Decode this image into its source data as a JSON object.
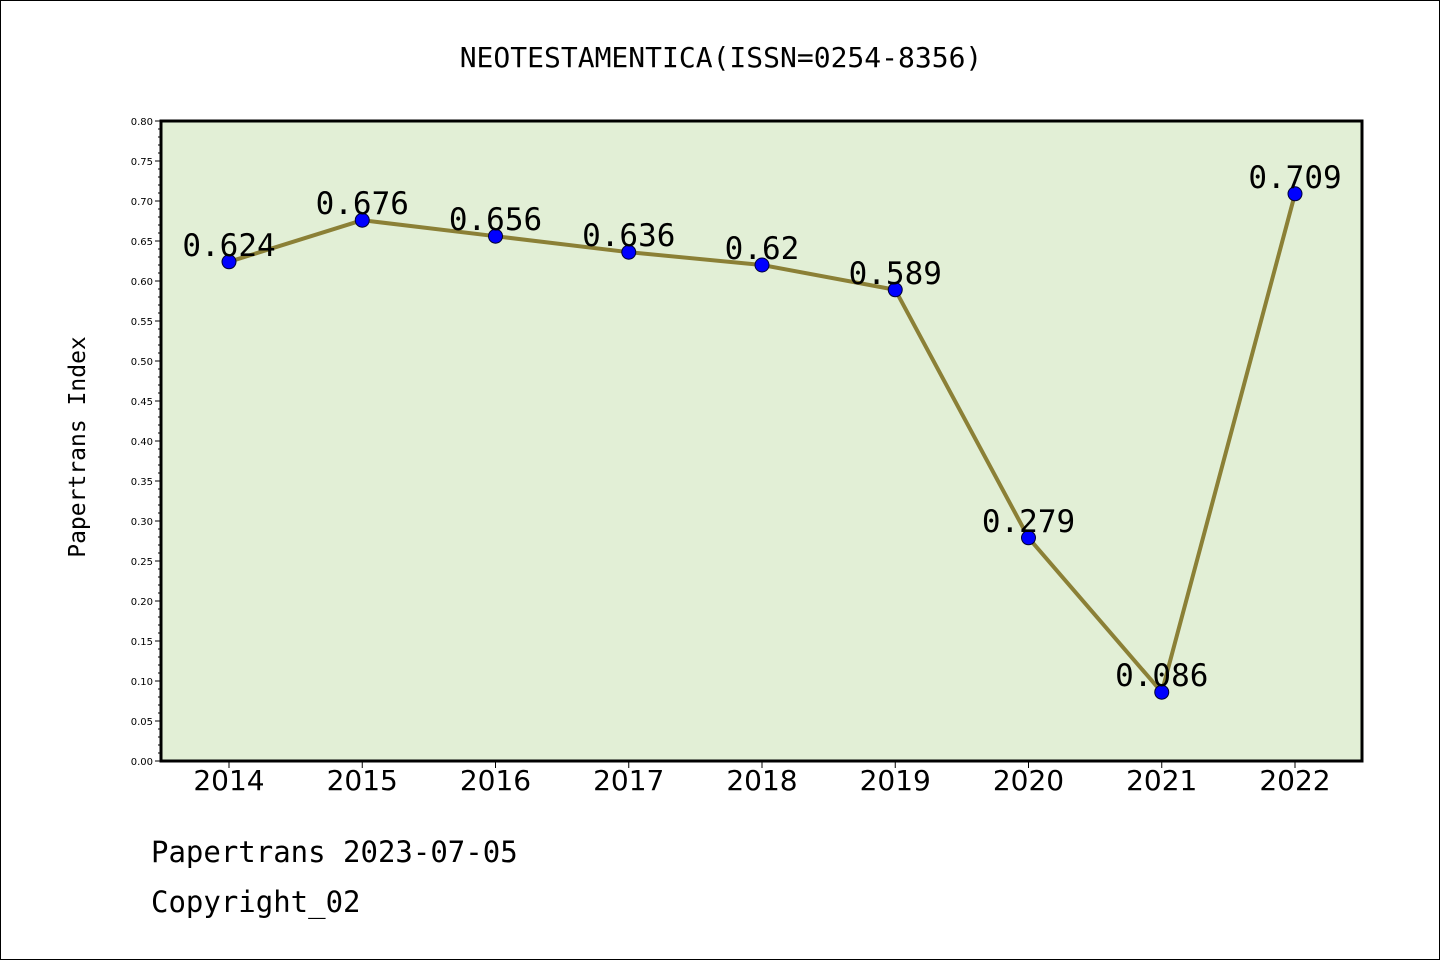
{
  "footer": {
    "line1": "Papertrans 2023-07-05",
    "line2": "Copyright_02"
  },
  "colors": {
    "plot_bg": "#e2efd6",
    "line": "#8b8036",
    "marker": "#0000ff"
  },
  "chart_data": {
    "type": "line",
    "title": "NEOTESTAMENTICA(ISSN=0254-8356)",
    "xlabel": "",
    "ylabel": "Papertrans Index",
    "categories": [
      "2014",
      "2015",
      "2016",
      "2017",
      "2018",
      "2019",
      "2020",
      "2021",
      "2022"
    ],
    "values": [
      0.624,
      0.676,
      0.656,
      0.636,
      0.62,
      0.589,
      0.279,
      0.086,
      0.709
    ],
    "data_labels": [
      "0.624",
      "0.676",
      "0.656",
      "0.636",
      "0.62",
      "0.589",
      "0.279",
      "0.086",
      "0.709"
    ],
    "ylim": [
      0,
      0.8
    ],
    "yticks": [
      "0.00",
      "0.05",
      "0.10",
      "0.15",
      "0.20",
      "0.25",
      "0.30",
      "0.35",
      "0.40",
      "0.45",
      "0.50",
      "0.55",
      "0.60",
      "0.65",
      "0.70",
      "0.75",
      "0.80"
    ],
    "grid": false,
    "legend": "none"
  }
}
